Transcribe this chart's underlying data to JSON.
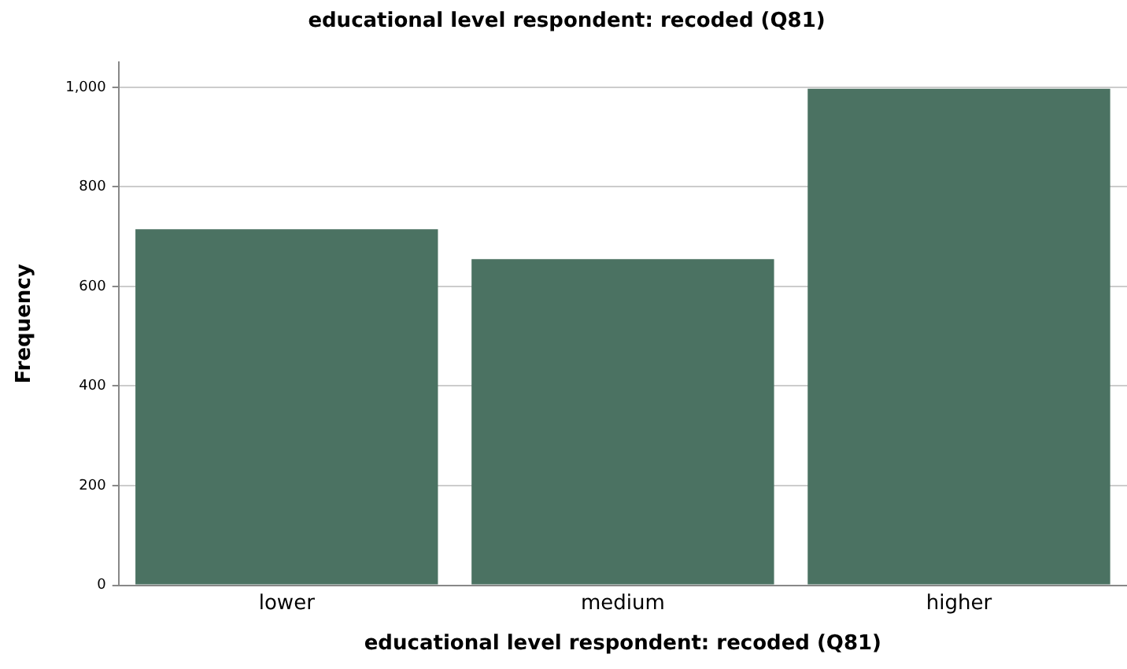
{
  "chart_data": {
    "type": "bar",
    "title": "educational level respondent: recoded (Q81)",
    "xlabel": "educational level respondent: recoded (Q81)",
    "ylabel": "Frequency",
    "categories": [
      "lower",
      "medium",
      "higher"
    ],
    "values": [
      715,
      655,
      997
    ],
    "color": "#4b7262",
    "ylim": [
      0,
      1050
    ],
    "yticks": [
      0,
      200,
      400,
      600,
      800,
      {
        "value": 1000,
        "label": "1,000"
      }
    ],
    "grid": "y",
    "legend": false
  }
}
